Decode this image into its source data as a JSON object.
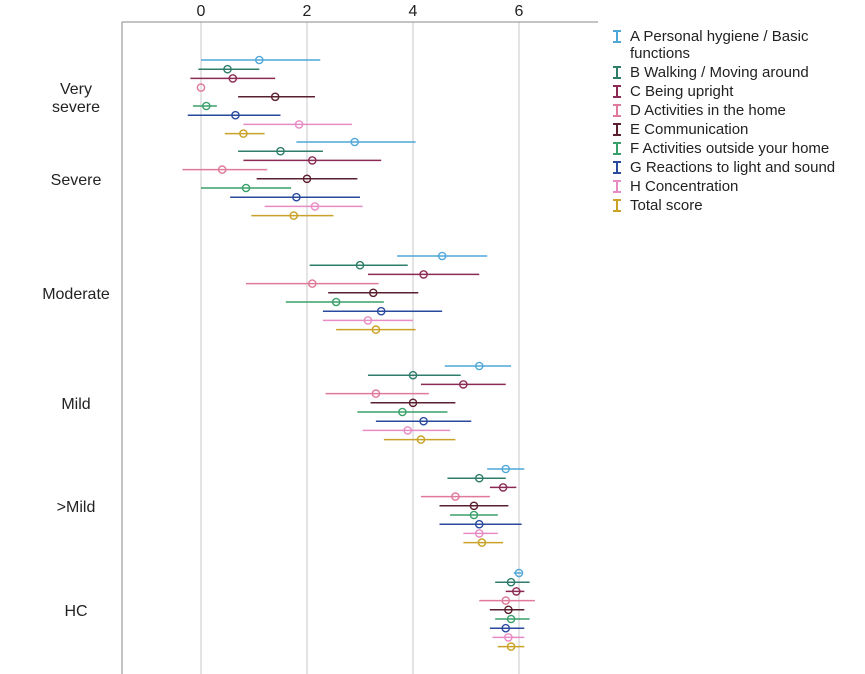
{
  "chart_data": {
    "type": "error-bar",
    "x_ticks": [
      "0",
      "2",
      "4",
      "6"
    ],
    "xlim": [
      -1.5,
      7.5
    ],
    "categories": [
      {
        "label_lines": [
          "Very",
          "severe"
        ]
      },
      {
        "label_lines": [
          "Severe"
        ]
      },
      {
        "label_lines": [
          "Moderate"
        ]
      },
      {
        "label_lines": [
          "Mild"
        ]
      },
      {
        "label_lines": [
          ">Mild"
        ]
      },
      {
        "label_lines": [
          "HC"
        ]
      }
    ],
    "series": [
      {
        "name": "A Personal hygiene / Basic functions",
        "color": "#4fa7d8",
        "points": [
          {
            "mean": 1.1,
            "low": 0.0,
            "high": 2.25
          },
          {
            "mean": 2.9,
            "low": 1.8,
            "high": 4.05
          },
          {
            "mean": 4.55,
            "low": 3.7,
            "high": 5.4
          },
          {
            "mean": 5.25,
            "low": 4.6,
            "high": 5.85
          },
          {
            "mean": 5.75,
            "low": 5.4,
            "high": 6.1
          },
          {
            "mean": 6.0,
            "low": 5.9,
            "high": 6.05
          }
        ]
      },
      {
        "name": "B Walking / Moving around",
        "color": "#2e7d6b",
        "points": [
          {
            "mean": 0.5,
            "low": -0.05,
            "high": 1.1
          },
          {
            "mean": 1.5,
            "low": 0.7,
            "high": 2.3
          },
          {
            "mean": 3.0,
            "low": 2.05,
            "high": 3.9
          },
          {
            "mean": 4.0,
            "low": 3.15,
            "high": 4.9
          },
          {
            "mean": 5.25,
            "low": 4.65,
            "high": 5.75
          },
          {
            "mean": 5.85,
            "low": 5.55,
            "high": 6.2
          }
        ]
      },
      {
        "name": "C Being upright",
        "color": "#8b2a55",
        "points": [
          {
            "mean": 0.6,
            "low": -0.2,
            "high": 1.4
          },
          {
            "mean": 2.1,
            "low": 0.8,
            "high": 3.4
          },
          {
            "mean": 4.2,
            "low": 3.15,
            "high": 5.25
          },
          {
            "mean": 4.95,
            "low": 4.15,
            "high": 5.75
          },
          {
            "mean": 5.7,
            "low": 5.45,
            "high": 5.95
          },
          {
            "mean": 5.95,
            "low": 5.75,
            "high": 6.1
          }
        ]
      },
      {
        "name": "D Activities in the home",
        "color": "#e07a9a",
        "points": [
          {
            "mean": 0.0,
            "low": 0.0,
            "high": 0.0
          },
          {
            "mean": 0.4,
            "low": -0.35,
            "high": 1.25
          },
          {
            "mean": 2.1,
            "low": 0.85,
            "high": 3.35
          },
          {
            "mean": 3.3,
            "low": 2.35,
            "high": 4.3
          },
          {
            "mean": 4.8,
            "low": 4.15,
            "high": 5.45
          },
          {
            "mean": 5.75,
            "low": 5.25,
            "high": 6.3
          }
        ]
      },
      {
        "name": "E Communication",
        "color": "#5a1f2f",
        "points": [
          {
            "mean": 1.4,
            "low": 0.7,
            "high": 2.15
          },
          {
            "mean": 2.0,
            "low": 1.05,
            "high": 2.95
          },
          {
            "mean": 3.25,
            "low": 2.4,
            "high": 4.1
          },
          {
            "mean": 4.0,
            "low": 3.2,
            "high": 4.8
          },
          {
            "mean": 5.15,
            "low": 4.5,
            "high": 5.8
          },
          {
            "mean": 5.8,
            "low": 5.45,
            "high": 6.1
          }
        ]
      },
      {
        "name": "F Activities outside your home",
        "color": "#3aa06a",
        "points": [
          {
            "mean": 0.1,
            "low": -0.15,
            "high": 0.3
          },
          {
            "mean": 0.85,
            "low": 0.0,
            "high": 1.7
          },
          {
            "mean": 2.55,
            "low": 1.6,
            "high": 3.45
          },
          {
            "mean": 3.8,
            "low": 2.95,
            "high": 4.65
          },
          {
            "mean": 5.15,
            "low": 4.7,
            "high": 5.6
          },
          {
            "mean": 5.85,
            "low": 5.55,
            "high": 6.2
          }
        ]
      },
      {
        "name": "G Reactions to light and sound",
        "color": "#2a4a9e",
        "points": [
          {
            "mean": 0.65,
            "low": -0.25,
            "high": 1.5
          },
          {
            "mean": 1.8,
            "low": 0.55,
            "high": 3.0
          },
          {
            "mean": 3.4,
            "low": 2.3,
            "high": 4.55
          },
          {
            "mean": 4.2,
            "low": 3.3,
            "high": 5.1
          },
          {
            "mean": 5.25,
            "low": 4.5,
            "high": 6.05
          },
          {
            "mean": 5.75,
            "low": 5.45,
            "high": 6.1
          }
        ]
      },
      {
        "name": "H Concentration",
        "color": "#e88bc4",
        "points": [
          {
            "mean": 1.85,
            "low": 0.8,
            "high": 2.85
          },
          {
            "mean": 2.15,
            "low": 1.2,
            "high": 3.05
          },
          {
            "mean": 3.15,
            "low": 2.3,
            "high": 4.0
          },
          {
            "mean": 3.9,
            "low": 3.05,
            "high": 4.7
          },
          {
            "mean": 5.25,
            "low": 4.95,
            "high": 5.6
          },
          {
            "mean": 5.8,
            "low": 5.5,
            "high": 6.1
          }
        ]
      },
      {
        "name": "Total score",
        "color": "#c9a227",
        "points": [
          {
            "mean": 0.8,
            "low": 0.45,
            "high": 1.2
          },
          {
            "mean": 1.75,
            "low": 0.95,
            "high": 2.5
          },
          {
            "mean": 3.3,
            "low": 2.55,
            "high": 4.05
          },
          {
            "mean": 4.15,
            "low": 3.45,
            "high": 4.8
          },
          {
            "mean": 5.3,
            "low": 4.95,
            "high": 5.7
          },
          {
            "mean": 5.85,
            "low": 5.6,
            "high": 6.1
          }
        ]
      }
    ]
  }
}
